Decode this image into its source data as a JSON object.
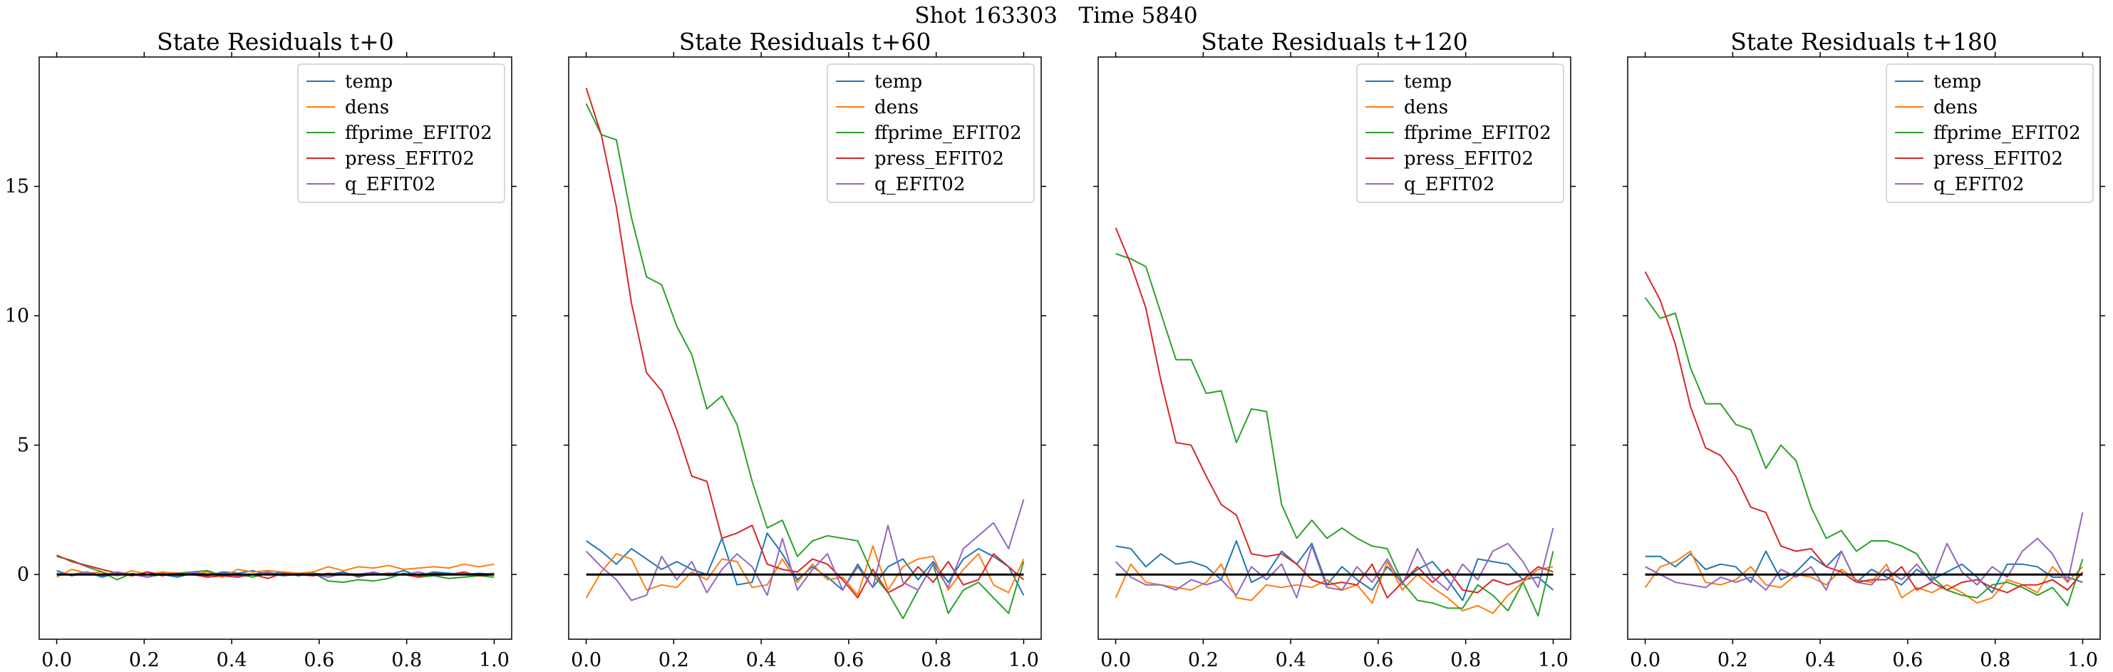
{
  "figure": {
    "suptitle": "Shot 163303   Time 5840"
  },
  "chart_data": [
    {
      "type": "line",
      "title": "State Residuals t+0",
      "xlim": [
        -0.04,
        1.04
      ],
      "ylim": [
        -2.5,
        20.0
      ],
      "xticks": [
        "0.0",
        "0.2",
        "0.4",
        "0.6",
        "0.8",
        "1.0"
      ],
      "yticks": [
        "0",
        "5",
        "10",
        "15"
      ],
      "legend": "top-right",
      "grid": false,
      "baseline": 0,
      "x": [
        0.0,
        0.0345,
        0.069,
        0.1034,
        0.1379,
        0.1724,
        0.2069,
        0.2414,
        0.2759,
        0.3103,
        0.3448,
        0.3793,
        0.4138,
        0.4483,
        0.4828,
        0.5172,
        0.5517,
        0.5862,
        0.6207,
        0.6552,
        0.6897,
        0.7241,
        0.7586,
        0.7931,
        0.8276,
        0.8621,
        0.8966,
        0.931,
        0.9655,
        1.0
      ],
      "series": [
        {
          "name": "temp",
          "color": "#1f77b4",
          "values": [
            0.15,
            -0.05,
            0.1,
            -0.1,
            0.05,
            -0.05,
            0.1,
            0.0,
            -0.1,
            0.05,
            -0.05,
            0.1,
            0.05,
            0.15,
            0.0,
            0.1,
            -0.05,
            0.05,
            0.0,
            0.1,
            -0.1,
            0.05,
            0.0,
            0.15,
            -0.05,
            0.1,
            0.05,
            0.0,
            0.05,
            0.0
          ]
        },
        {
          "name": "dens",
          "color": "#ff7f0e",
          "values": [
            -0.1,
            0.2,
            0.05,
            0.1,
            -0.05,
            0.15,
            0.0,
            0.1,
            0.05,
            0.0,
            0.1,
            -0.1,
            0.2,
            0.1,
            0.15,
            0.1,
            0.05,
            0.1,
            0.3,
            0.15,
            0.3,
            0.25,
            0.35,
            0.2,
            0.25,
            0.3,
            0.25,
            0.4,
            0.3,
            0.4
          ]
        },
        {
          "name": "ffprime_EFIT02",
          "color": "#2ca02c",
          "values": [
            0.7,
            0.55,
            0.3,
            0.1,
            -0.2,
            0.05,
            -0.1,
            0.0,
            0.05,
            0.1,
            0.15,
            -0.05,
            0.0,
            -0.1,
            0.05,
            -0.05,
            0.0,
            0.05,
            -0.25,
            -0.3,
            -0.2,
            -0.25,
            -0.15,
            0.05,
            -0.1,
            -0.05,
            -0.15,
            -0.1,
            -0.05,
            -0.1
          ]
        },
        {
          "name": "press_EFIT02",
          "color": "#d62728",
          "values": [
            0.75,
            0.5,
            0.35,
            0.2,
            0.05,
            -0.05,
            0.1,
            -0.05,
            0.05,
            0.0,
            -0.1,
            -0.05,
            -0.1,
            0.0,
            -0.15,
            0.05,
            0.0,
            -0.05,
            0.05,
            0.0,
            -0.05,
            0.0,
            0.05,
            0.0,
            -0.1,
            0.05,
            0.0,
            0.1,
            -0.05,
            0.0
          ]
        },
        {
          "name": "q_EFIT02",
          "color": "#9467bd",
          "values": [
            0.05,
            0.0,
            0.1,
            -0.05,
            0.1,
            0.0,
            -0.1,
            0.05,
            -0.05,
            0.1,
            0.0,
            0.05,
            -0.05,
            0.0,
            0.1,
            -0.05,
            0.05,
            0.0,
            -0.1,
            0.05,
            0.0,
            0.1,
            -0.05,
            0.0,
            0.1,
            -0.05,
            0.0,
            0.05,
            0.0,
            0.05
          ]
        }
      ]
    },
    {
      "type": "line",
      "title": "State Residuals t+60",
      "xlim": [
        -0.04,
        1.04
      ],
      "ylim": [
        -2.5,
        20.0
      ],
      "xticks": [
        "0.0",
        "0.2",
        "0.4",
        "0.6",
        "0.8",
        "1.0"
      ],
      "yticks": [
        "0",
        "5",
        "10",
        "15"
      ],
      "legend": "top-right",
      "grid": false,
      "baseline": 0,
      "x": [
        0.0,
        0.0345,
        0.069,
        0.1034,
        0.1379,
        0.1724,
        0.2069,
        0.2414,
        0.2759,
        0.3103,
        0.3448,
        0.3793,
        0.4138,
        0.4483,
        0.4828,
        0.5172,
        0.5517,
        0.5862,
        0.6207,
        0.6552,
        0.6897,
        0.7241,
        0.7586,
        0.7931,
        0.8276,
        0.8621,
        0.8966,
        0.931,
        0.9655,
        1.0
      ],
      "series": [
        {
          "name": "temp",
          "color": "#1f77b4",
          "values": [
            1.3,
            0.9,
            0.4,
            1.0,
            0.6,
            0.2,
            0.5,
            0.2,
            0.0,
            1.4,
            -0.4,
            -0.3,
            1.6,
            0.8,
            -0.2,
            0.3,
            -0.1,
            -0.6,
            0.4,
            -0.5,
            0.3,
            0.6,
            -0.2,
            0.5,
            -0.3,
            0.6,
            1.0,
            0.7,
            0.3,
            -0.8
          ]
        },
        {
          "name": "dens",
          "color": "#ff7f0e",
          "values": [
            -0.9,
            0.1,
            0.8,
            0.6,
            -0.6,
            -0.4,
            -0.5,
            0.1,
            -0.2,
            0.6,
            0.5,
            -0.5,
            -0.4,
            0.6,
            -0.3,
            0.4,
            -0.2,
            -0.1,
            -0.8,
            1.1,
            -0.6,
            0.3,
            0.6,
            0.7,
            -0.6,
            0.2,
            0.8,
            -0.4,
            -0.7,
            0.6
          ]
        },
        {
          "name": "ffprime_EFIT02",
          "color": "#2ca02c",
          "values": [
            18.2,
            17.0,
            16.8,
            13.8,
            11.5,
            11.2,
            9.6,
            8.5,
            6.4,
            6.9,
            5.8,
            3.6,
            1.8,
            2.1,
            0.7,
            1.3,
            1.5,
            1.4,
            1.3,
            0.0,
            -0.7,
            -1.7,
            -0.6,
            0.4,
            -1.5,
            -0.6,
            -0.3,
            -0.9,
            -1.5,
            0.5
          ]
        },
        {
          "name": "press_EFIT02",
          "color": "#d62728",
          "values": [
            18.8,
            17.0,
            14.2,
            10.5,
            7.8,
            7.1,
            5.6,
            3.8,
            3.6,
            1.4,
            1.6,
            1.9,
            0.4,
            0.2,
            0.1,
            0.6,
            0.4,
            -0.2,
            -0.9,
            0.2,
            -0.7,
            -0.4,
            0.3,
            -0.3,
            0.5,
            -0.4,
            -0.2,
            0.8,
            0.3,
            -0.2
          ]
        },
        {
          "name": "q_EFIT02",
          "color": "#9467bd",
          "values": [
            0.9,
            0.3,
            -0.2,
            -1.0,
            -0.8,
            0.7,
            -0.2,
            0.5,
            -0.7,
            0.2,
            0.8,
            0.3,
            -0.8,
            1.4,
            -0.6,
            0.2,
            0.8,
            -0.6,
            0.3,
            -0.5,
            1.9,
            -0.3,
            -0.6,
            0.4,
            -0.5,
            1.0,
            1.5,
            2.0,
            1.0,
            2.9
          ]
        }
      ]
    },
    {
      "type": "line",
      "title": "State Residuals t+120",
      "xlim": [
        -0.04,
        1.04
      ],
      "ylim": [
        -2.5,
        20.0
      ],
      "xticks": [
        "0.0",
        "0.2",
        "0.4",
        "0.6",
        "0.8",
        "1.0"
      ],
      "yticks": [
        "0",
        "5",
        "10",
        "15"
      ],
      "legend": "top-right",
      "grid": false,
      "baseline": 0,
      "x": [
        0.0,
        0.0345,
        0.069,
        0.1034,
        0.1379,
        0.1724,
        0.2069,
        0.2414,
        0.2759,
        0.3103,
        0.3448,
        0.3793,
        0.4138,
        0.4483,
        0.4828,
        0.5172,
        0.5517,
        0.5862,
        0.6207,
        0.6552,
        0.6897,
        0.7241,
        0.7586,
        0.7931,
        0.8276,
        0.8621,
        0.8966,
        0.931,
        0.9655,
        1.0
      ],
      "series": [
        {
          "name": "temp",
          "color": "#1f77b4",
          "values": [
            1.1,
            1.0,
            0.3,
            0.8,
            0.4,
            0.5,
            0.3,
            -0.2,
            1.3,
            -0.3,
            0.0,
            0.9,
            0.4,
            1.2,
            -0.4,
            0.3,
            -0.2,
            -0.6,
            0.3,
            -0.3,
            0.2,
            0.5,
            -0.2,
            -1.0,
            0.6,
            0.5,
            0.4,
            -0.2,
            -0.1,
            -0.6
          ]
        },
        {
          "name": "dens",
          "color": "#ff7f0e",
          "values": [
            -0.9,
            0.4,
            -0.3,
            -0.4,
            -0.5,
            -0.6,
            -0.3,
            0.4,
            -0.9,
            -1.0,
            -0.4,
            -0.5,
            -0.4,
            -0.5,
            -0.2,
            -0.6,
            -0.4,
            -1.1,
            0.5,
            -0.6,
            0.0,
            -0.5,
            -0.9,
            -1.4,
            -1.2,
            -1.5,
            -0.8,
            -0.3,
            0.2,
            0.3
          ]
        },
        {
          "name": "ffprime_EFIT02",
          "color": "#2ca02c",
          "values": [
            12.4,
            12.2,
            11.9,
            10.1,
            8.3,
            8.3,
            7.0,
            7.1,
            5.1,
            6.4,
            6.3,
            2.7,
            1.4,
            2.1,
            1.4,
            1.8,
            1.4,
            1.1,
            1.0,
            -0.3,
            -1.0,
            -1.1,
            -1.3,
            -1.3,
            -0.4,
            -0.8,
            -1.4,
            -0.3,
            -1.6,
            0.9
          ]
        },
        {
          "name": "press_EFIT02",
          "color": "#d62728",
          "values": [
            13.4,
            12.0,
            10.3,
            7.5,
            5.1,
            5.0,
            3.8,
            2.7,
            2.3,
            0.8,
            0.7,
            0.8,
            0.4,
            -0.2,
            -0.4,
            -0.3,
            -0.4,
            0.4,
            -0.9,
            -0.3,
            0.3,
            -0.3,
            0.2,
            -0.6,
            -0.7,
            -0.2,
            -0.4,
            -0.2,
            0.3,
            0.1
          ]
        },
        {
          "name": "q_EFIT02",
          "color": "#9467bd",
          "values": [
            0.5,
            -0.1,
            -0.4,
            -0.4,
            -0.6,
            -0.2,
            -0.4,
            -0.2,
            -0.8,
            0.3,
            -0.2,
            0.4,
            -0.9,
            1.1,
            -0.5,
            -0.6,
            0.3,
            -0.3,
            0.6,
            -0.4,
            1.0,
            -0.1,
            -0.6,
            0.4,
            -0.2,
            0.9,
            1.2,
            0.5,
            -0.5,
            1.8
          ]
        }
      ]
    },
    {
      "type": "line",
      "title": "State Residuals t+180",
      "xlim": [
        -0.04,
        1.04
      ],
      "ylim": [
        -2.5,
        20.0
      ],
      "xticks": [
        "0.0",
        "0.2",
        "0.4",
        "0.6",
        "0.8",
        "1.0"
      ],
      "yticks": [
        "0",
        "5",
        "10",
        "15"
      ],
      "legend": "top-right",
      "grid": false,
      "baseline": 0,
      "x": [
        0.0,
        0.0345,
        0.069,
        0.1034,
        0.1379,
        0.1724,
        0.2069,
        0.2414,
        0.2759,
        0.3103,
        0.3448,
        0.3793,
        0.4138,
        0.4483,
        0.4828,
        0.5172,
        0.5517,
        0.5862,
        0.6207,
        0.6552,
        0.6897,
        0.7241,
        0.7586,
        0.7931,
        0.8276,
        0.8621,
        0.8966,
        0.931,
        0.9655,
        1.0
      ],
      "series": [
        {
          "name": "temp",
          "color": "#1f77b4",
          "values": [
            0.7,
            0.7,
            0.3,
            0.8,
            0.2,
            0.4,
            0.3,
            -0.3,
            0.9,
            -0.2,
            0.1,
            0.7,
            0.3,
            0.9,
            -0.3,
            0.2,
            -0.1,
            -0.4,
            0.2,
            -0.2,
            0.1,
            0.4,
            -0.1,
            -0.7,
            0.4,
            0.4,
            0.3,
            -0.1,
            -0.1,
            -0.3
          ]
        },
        {
          "name": "dens",
          "color": "#ff7f0e",
          "values": [
            -0.5,
            0.3,
            0.5,
            0.9,
            -0.3,
            -0.4,
            -0.2,
            0.3,
            -0.4,
            -0.5,
            0.0,
            -0.1,
            -0.4,
            0.2,
            -0.2,
            -0.3,
            0.4,
            -0.9,
            -0.5,
            -0.7,
            -0.4,
            -0.7,
            -1.1,
            -0.9,
            -0.2,
            -0.4,
            -0.7,
            0.3,
            -0.3,
            0.3
          ]
        },
        {
          "name": "ffprime_EFIT02",
          "color": "#2ca02c",
          "values": [
            10.7,
            9.9,
            10.1,
            8.0,
            6.6,
            6.6,
            5.8,
            5.6,
            4.1,
            5.0,
            4.4,
            2.6,
            1.4,
            1.7,
            0.9,
            1.3,
            1.3,
            1.1,
            0.8,
            -0.1,
            -0.6,
            -0.8,
            -0.9,
            -0.4,
            -0.3,
            -0.5,
            -0.8,
            -0.5,
            -1.2,
            0.6
          ]
        },
        {
          "name": "press_EFIT02",
          "color": "#d62728",
          "values": [
            11.7,
            10.6,
            8.9,
            6.5,
            4.9,
            4.6,
            3.8,
            2.6,
            2.4,
            1.1,
            0.9,
            1.0,
            0.3,
            0.1,
            -0.3,
            -0.2,
            -0.2,
            0.3,
            -0.6,
            -0.3,
            -0.6,
            -0.3,
            -0.2,
            -0.5,
            -0.7,
            -0.4,
            -0.4,
            -0.2,
            -0.6,
            0.1
          ]
        },
        {
          "name": "q_EFIT02",
          "color": "#9467bd",
          "values": [
            0.3,
            0.0,
            -0.3,
            -0.4,
            -0.5,
            -0.1,
            -0.3,
            -0.1,
            -0.6,
            0.2,
            -0.1,
            0.3,
            -0.6,
            0.9,
            -0.3,
            -0.4,
            0.2,
            -0.2,
            0.4,
            -0.3,
            1.2,
            0.1,
            -0.4,
            0.3,
            -0.1,
            0.9,
            1.4,
            0.8,
            -0.3,
            2.4
          ]
        }
      ]
    }
  ]
}
